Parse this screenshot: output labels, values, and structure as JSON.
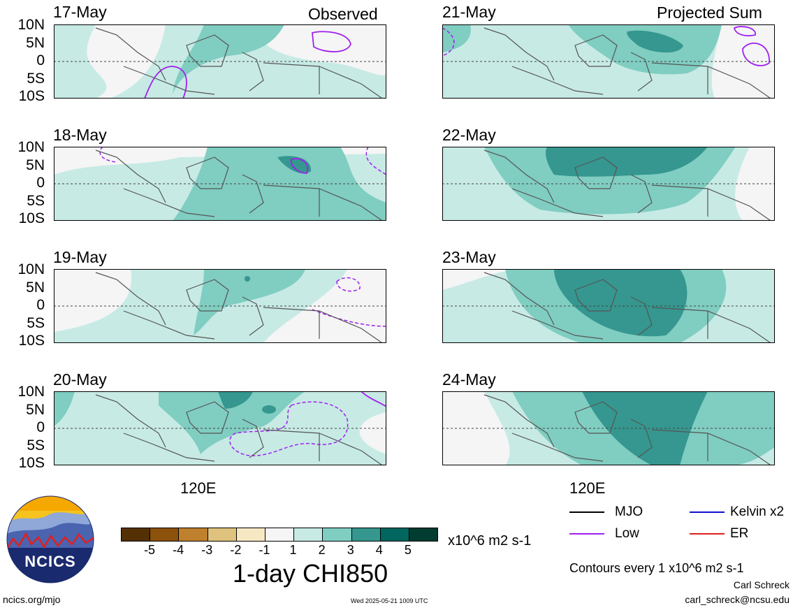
{
  "panels_left": [
    {
      "date": "17-May",
      "tag": "Observed"
    },
    {
      "date": "18-May",
      "tag": ""
    },
    {
      "date": "19-May",
      "tag": ""
    },
    {
      "date": "20-May",
      "tag": ""
    }
  ],
  "panels_right": [
    {
      "date": "21-May",
      "tag": "Projected Sum"
    },
    {
      "date": "22-May",
      "tag": ""
    },
    {
      "date": "23-May",
      "tag": ""
    },
    {
      "date": "24-May",
      "tag": ""
    }
  ],
  "lat_labels": [
    "10N",
    "5N",
    "0",
    "5S",
    "10S"
  ],
  "lon_label": "120E",
  "colorbar": {
    "colors": [
      "#543005",
      "#8c510a",
      "#bf812d",
      "#dfc27d",
      "#f6e8c3",
      "#f5f5f5",
      "#c7eae5",
      "#80cdc1",
      "#35978f",
      "#01665e",
      "#003c30"
    ],
    "labels": [
      "-5",
      "-4",
      "-3",
      "-2",
      "-1",
      "1",
      "2",
      "3",
      "4",
      "5"
    ],
    "units": "x10^6 m2 s-1",
    "title": "1-day CHI850"
  },
  "legend": [
    {
      "name": "MJO",
      "color": "#000000"
    },
    {
      "name": "Kelvin x2",
      "color": "#1010d0"
    },
    {
      "name": "Low",
      "color": "#a020f0"
    },
    {
      "name": "ER",
      "color": "#e02020"
    }
  ],
  "contour_note": "Contours every 1 x10^6 m2 s-1",
  "author": "Carl Schreck",
  "email": "carl_schreck@ncsu.edu",
  "site": "ncics.org/mjo",
  "timestamp": "Wed 2025-05-21 1009 UTC",
  "logo_text": "NCICS"
}
